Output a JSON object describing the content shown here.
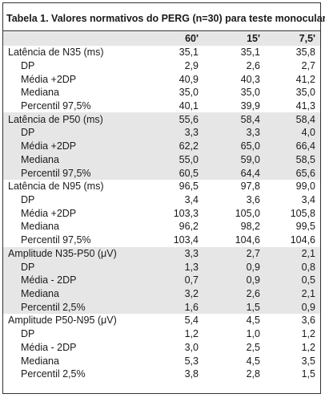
{
  "title": "Tabela 1. Valores normativos do PERG (n=30)  para teste monocular",
  "columns": [
    "60'",
    "15'",
    "7,5'"
  ],
  "rows": [
    {
      "label": "Latência de N35 (ms)",
      "values": [
        "35,1",
        "35,1",
        "35,8"
      ],
      "level": 0,
      "shaded": false
    },
    {
      "label": "DP",
      "values": [
        "2,9",
        "2,6",
        "2,7"
      ],
      "level": 1,
      "shaded": false
    },
    {
      "label": "Média +2DP",
      "values": [
        "40,9",
        "40,3",
        "41,2"
      ],
      "level": 1,
      "shaded": false
    },
    {
      "label": "Mediana",
      "values": [
        "35,0",
        "35,0",
        "35,0"
      ],
      "level": 1,
      "shaded": false
    },
    {
      "label": "Percentil 97,5%",
      "values": [
        "40,1",
        "39,9",
        "41,3"
      ],
      "level": 1,
      "shaded": false
    },
    {
      "label": "Latência de P50 (ms)",
      "values": [
        "55,6",
        "58,4",
        "58,4"
      ],
      "level": 0,
      "shaded": true
    },
    {
      "label": "DP",
      "values": [
        "3,3",
        "3,3",
        "4,0"
      ],
      "level": 1,
      "shaded": true
    },
    {
      "label": "Média +2DP",
      "values": [
        "62,2",
        "65,0",
        "66,4"
      ],
      "level": 1,
      "shaded": true
    },
    {
      "label": "Mediana",
      "values": [
        "55,0",
        "59,0",
        "58,5"
      ],
      "level": 1,
      "shaded": true
    },
    {
      "label": "Percentil 97,5%",
      "values": [
        "60,5",
        "64,4",
        "65,6"
      ],
      "level": 1,
      "shaded": true
    },
    {
      "label": "Latência de N95 (ms)",
      "values": [
        "96,5",
        "97,8",
        "99,0"
      ],
      "level": 0,
      "shaded": false
    },
    {
      "label": "DP",
      "values": [
        "3,4",
        "3,6",
        "3,4"
      ],
      "level": 1,
      "shaded": false
    },
    {
      "label": "Média +2DP",
      "values": [
        "103,3",
        "105,0",
        "105,8"
      ],
      "level": 1,
      "shaded": false
    },
    {
      "label": "Mediana",
      "values": [
        "96,2",
        "98,2",
        "99,5"
      ],
      "level": 1,
      "shaded": false
    },
    {
      "label": "Percentil 97,5%",
      "values": [
        "103,4",
        "104,6",
        "104,6"
      ],
      "level": 1,
      "shaded": false
    },
    {
      "label": "Amplitude N35-P50 (μV)",
      "values": [
        "3,3",
        "2,7",
        "2,1"
      ],
      "level": 0,
      "shaded": true
    },
    {
      "label": "DP",
      "values": [
        "1,3",
        "0,9",
        "0,8"
      ],
      "level": 1,
      "shaded": true
    },
    {
      "label": "Média - 2DP",
      "values": [
        "0,7",
        "0,9",
        "0,5"
      ],
      "level": 1,
      "shaded": true
    },
    {
      "label": "Mediana",
      "values": [
        "3,2",
        "2,6",
        "2,1"
      ],
      "level": 1,
      "shaded": true
    },
    {
      "label": "Percentil 2,5%",
      "values": [
        "1,6",
        "1,5",
        "0,9"
      ],
      "level": 1,
      "shaded": true
    },
    {
      "label": "Amplitude P50-N95 (μV)",
      "values": [
        "5,4",
        "4,5",
        "3,6"
      ],
      "level": 0,
      "shaded": false
    },
    {
      "label": "DP",
      "values": [
        "1,2",
        "1,0",
        "1,2"
      ],
      "level": 1,
      "shaded": false
    },
    {
      "label": "Média - 2DP",
      "values": [
        "3,0",
        "2,5",
        "1,2"
      ],
      "level": 1,
      "shaded": false
    },
    {
      "label": "Mediana",
      "values": [
        "5,3",
        "4,5",
        "3,5"
      ],
      "level": 1,
      "shaded": false
    },
    {
      "label": "Percentil 2,5%",
      "values": [
        "3,8",
        "2,8",
        "1,5"
      ],
      "level": 1,
      "shaded": false
    }
  ]
}
